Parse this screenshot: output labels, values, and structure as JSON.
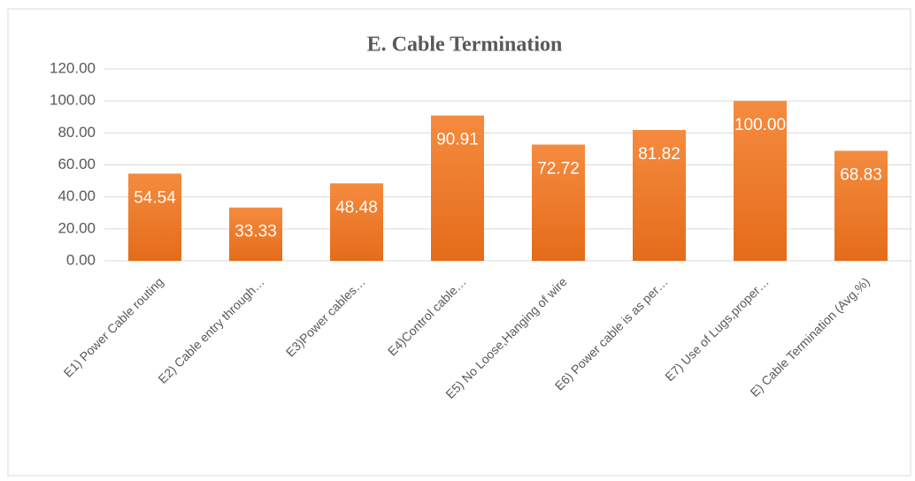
{
  "chart_data": {
    "type": "bar",
    "title": "E. Cable Termination",
    "categories": [
      "E1) Power Cable routing",
      "E2) Cable entry  through…",
      "E3)Power cables…",
      "E4)Control cable…",
      "E5) No Loose,Hanging of wire",
      "E6) Power cable is as per…",
      "E7) Use of Lugs,proper…",
      "E) Cable Termination (Avg.%)"
    ],
    "values": [
      54.54,
      33.33,
      48.48,
      90.91,
      72.72,
      81.82,
      100,
      68.83
    ],
    "value_labels": [
      "54.54",
      "33.33",
      "48.48",
      "90.91",
      "72.72",
      "81.82",
      "100.00",
      "68.83"
    ],
    "color": "#ed7d31",
    "ylim": [
      0,
      120
    ],
    "yticks": [
      {
        "value": 0,
        "label": "0.00"
      },
      {
        "value": 20,
        "label": "20.00"
      },
      {
        "value": 40,
        "label": "40.00"
      },
      {
        "value": 60,
        "label": "60.00"
      },
      {
        "value": 80,
        "label": "80.00"
      },
      {
        "value": 100,
        "label": "100.00"
      },
      {
        "value": 120,
        "label": "120.00"
      }
    ],
    "grid": true
  }
}
